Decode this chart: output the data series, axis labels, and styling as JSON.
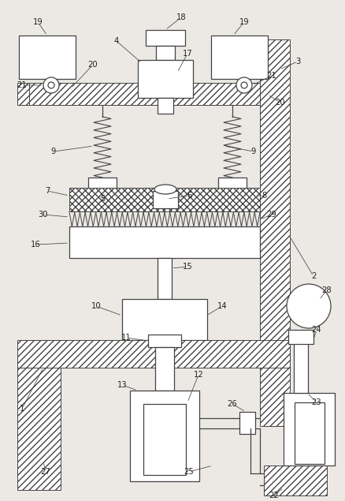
{
  "bg_color": "#ece9e4",
  "line_color": "#444444",
  "fig_width": 4.39,
  "fig_height": 6.35,
  "dpi": 100
}
